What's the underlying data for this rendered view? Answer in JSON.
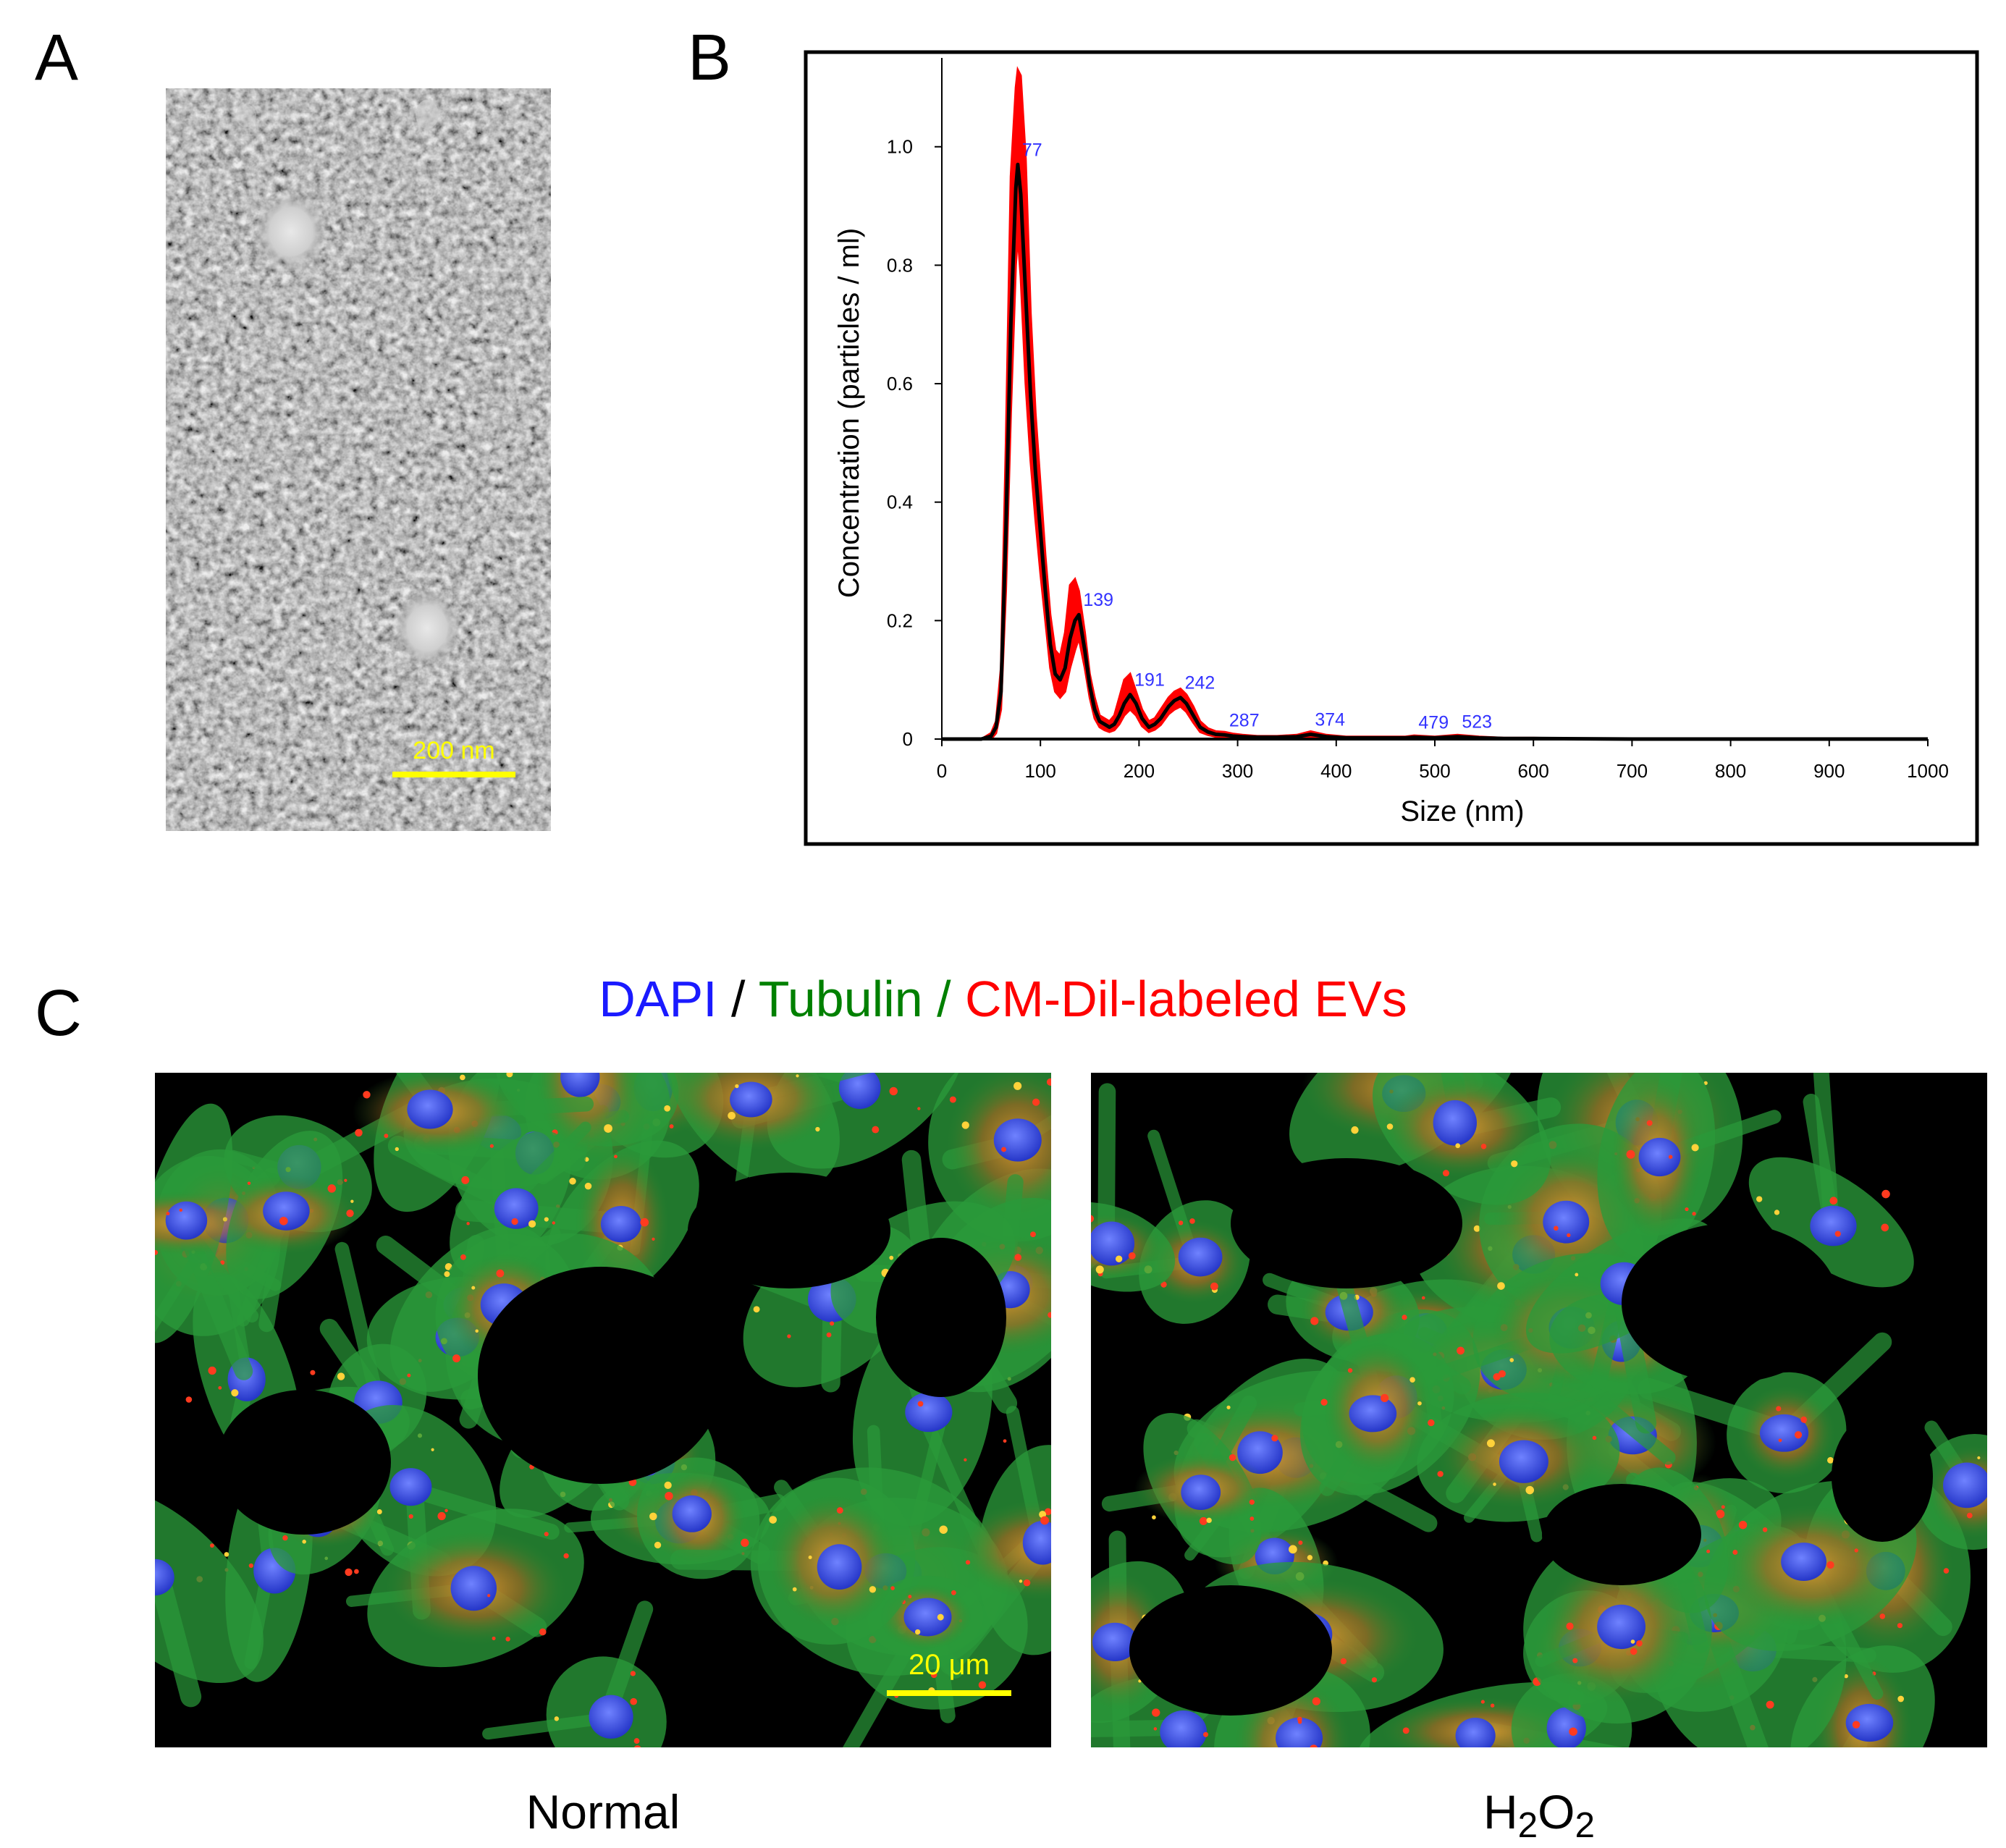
{
  "panel_labels": {
    "a": "A",
    "b": "B",
    "c": "C"
  },
  "panel_a": {
    "scale_bar_label": "200 nm",
    "scale_bar_color": "#ffff00"
  },
  "chart_data": {
    "type": "line",
    "xlabel": "Size (nm)",
    "ylabel": "Concentration (particles / ml)",
    "xlim": [
      0,
      1000
    ],
    "ylim": [
      0,
      1.15
    ],
    "x_ticks": [
      0,
      100,
      200,
      300,
      400,
      500,
      600,
      700,
      800,
      900,
      1000
    ],
    "y_ticks": [
      0,
      0.2,
      0.4,
      0.6,
      0.8,
      1.0
    ],
    "y_tick_labels": [
      "0",
      "0.2",
      "0.4",
      "0.6",
      "0.8",
      "1.0"
    ],
    "grid": false,
    "series": [
      {
        "color": "#000000",
        "style": "mean line",
        "x": [
          0,
          40,
          50,
          55,
          60,
          65,
          70,
          75,
          77,
          80,
          85,
          90,
          95,
          100,
          105,
          110,
          115,
          120,
          125,
          130,
          135,
          139,
          145,
          150,
          155,
          160,
          165,
          170,
          175,
          180,
          185,
          191,
          197,
          203,
          210,
          216,
          222,
          230,
          236,
          242,
          248,
          255,
          262,
          270,
          278,
          287,
          295,
          305,
          320,
          340,
          360,
          374,
          390,
          410,
          440,
          470,
          479,
          500,
          523,
          545,
          570,
          600,
          700,
          800,
          900,
          1000
        ],
        "y": [
          0,
          0,
          0.005,
          0.02,
          0.08,
          0.35,
          0.7,
          0.93,
          0.97,
          0.92,
          0.75,
          0.58,
          0.45,
          0.35,
          0.25,
          0.16,
          0.11,
          0.1,
          0.12,
          0.17,
          0.2,
          0.21,
          0.15,
          0.09,
          0.05,
          0.03,
          0.025,
          0.02,
          0.025,
          0.04,
          0.06,
          0.075,
          0.06,
          0.035,
          0.02,
          0.025,
          0.035,
          0.055,
          0.065,
          0.07,
          0.06,
          0.04,
          0.02,
          0.012,
          0.008,
          0.007,
          0.005,
          0.004,
          0.003,
          0.003,
          0.004,
          0.008,
          0.004,
          0.002,
          0.002,
          0.002,
          0.003,
          0.002,
          0.004,
          0.002,
          0.001,
          0.001,
          0,
          0,
          0,
          0
        ]
      },
      {
        "color": "#ff0000",
        "style": "error band",
        "x": [
          0,
          40,
          50,
          55,
          60,
          65,
          70,
          75,
          77,
          80,
          85,
          90,
          95,
          100,
          105,
          110,
          115,
          120,
          125,
          130,
          135,
          139,
          145,
          150,
          155,
          160,
          165,
          170,
          175,
          180,
          185,
          191,
          197,
          203,
          210,
          216,
          222,
          230,
          236,
          242,
          248,
          255,
          262,
          270,
          278,
          287,
          295,
          305,
          320,
          340,
          360,
          374,
          390,
          410,
          440,
          470,
          479,
          500,
          523,
          545,
          570,
          600,
          700,
          800,
          900,
          1000
        ],
        "upper": [
          0,
          0,
          0.01,
          0.03,
          0.12,
          0.5,
          0.95,
          1.1,
          1.13,
          1.12,
          0.98,
          0.72,
          0.55,
          0.43,
          0.31,
          0.21,
          0.15,
          0.14,
          0.18,
          0.26,
          0.27,
          0.25,
          0.18,
          0.11,
          0.07,
          0.04,
          0.035,
          0.03,
          0.04,
          0.07,
          0.1,
          0.11,
          0.08,
          0.05,
          0.03,
          0.035,
          0.05,
          0.07,
          0.08,
          0.085,
          0.075,
          0.055,
          0.03,
          0.018,
          0.013,
          0.012,
          0.009,
          0.007,
          0.005,
          0.005,
          0.007,
          0.013,
          0.007,
          0.004,
          0.004,
          0.004,
          0.006,
          0.004,
          0.007,
          0.004,
          0.002,
          0.002,
          0,
          0,
          0,
          0
        ],
        "lower": [
          0,
          0,
          0,
          0.01,
          0.05,
          0.25,
          0.55,
          0.8,
          0.85,
          0.78,
          0.6,
          0.47,
          0.37,
          0.28,
          0.2,
          0.12,
          0.08,
          0.07,
          0.08,
          0.12,
          0.15,
          0.17,
          0.12,
          0.07,
          0.035,
          0.02,
          0.015,
          0.012,
          0.015,
          0.025,
          0.04,
          0.05,
          0.04,
          0.022,
          0.012,
          0.016,
          0.024,
          0.042,
          0.05,
          0.055,
          0.046,
          0.028,
          0.012,
          0.007,
          0.004,
          0.003,
          0.002,
          0.002,
          0.001,
          0.001,
          0.002,
          0.004,
          0.002,
          0.001,
          0.001,
          0.001,
          0.001,
          0.001,
          0.002,
          0.001,
          0,
          0,
          0,
          0,
          0,
          0
        ]
      }
    ],
    "annotations": [
      {
        "x": 77,
        "y": 0.97,
        "text": "77"
      },
      {
        "x": 139,
        "y": 0.21,
        "text": "139"
      },
      {
        "x": 191,
        "y": 0.075,
        "text": "191"
      },
      {
        "x": 242,
        "y": 0.07,
        "text": "242"
      },
      {
        "x": 287,
        "y": 0.007,
        "text": "287"
      },
      {
        "x": 374,
        "y": 0.008,
        "text": "374"
      },
      {
        "x": 479,
        "y": 0.003,
        "text": "479"
      },
      {
        "x": 523,
        "y": 0.004,
        "text": "523"
      }
    ],
    "annotation_color": "#3333ff"
  },
  "panel_c": {
    "legend": [
      {
        "text": "DAPI",
        "color": "#1a1aff"
      },
      {
        "text": " / ",
        "color": "#000000"
      },
      {
        "text": "Tubulin",
        "color": "#008000"
      },
      {
        "text": " / ",
        "color": "#008000"
      },
      {
        "text": "CM-Dil-labeled EVs",
        "color": "#ff0000"
      }
    ],
    "scale_bar_label": "20 μm",
    "scale_bar_color": "#ffff00",
    "caption_left": "Normal",
    "caption_right_main": "H",
    "caption_right_sub1": "2",
    "caption_right_mid": "O",
    "caption_right_sub2": "2",
    "colors": {
      "nucleus": "#3a50e0",
      "tubulin": "#2a9a3a",
      "ev": "#ff3b1f",
      "background": "#000000"
    }
  }
}
